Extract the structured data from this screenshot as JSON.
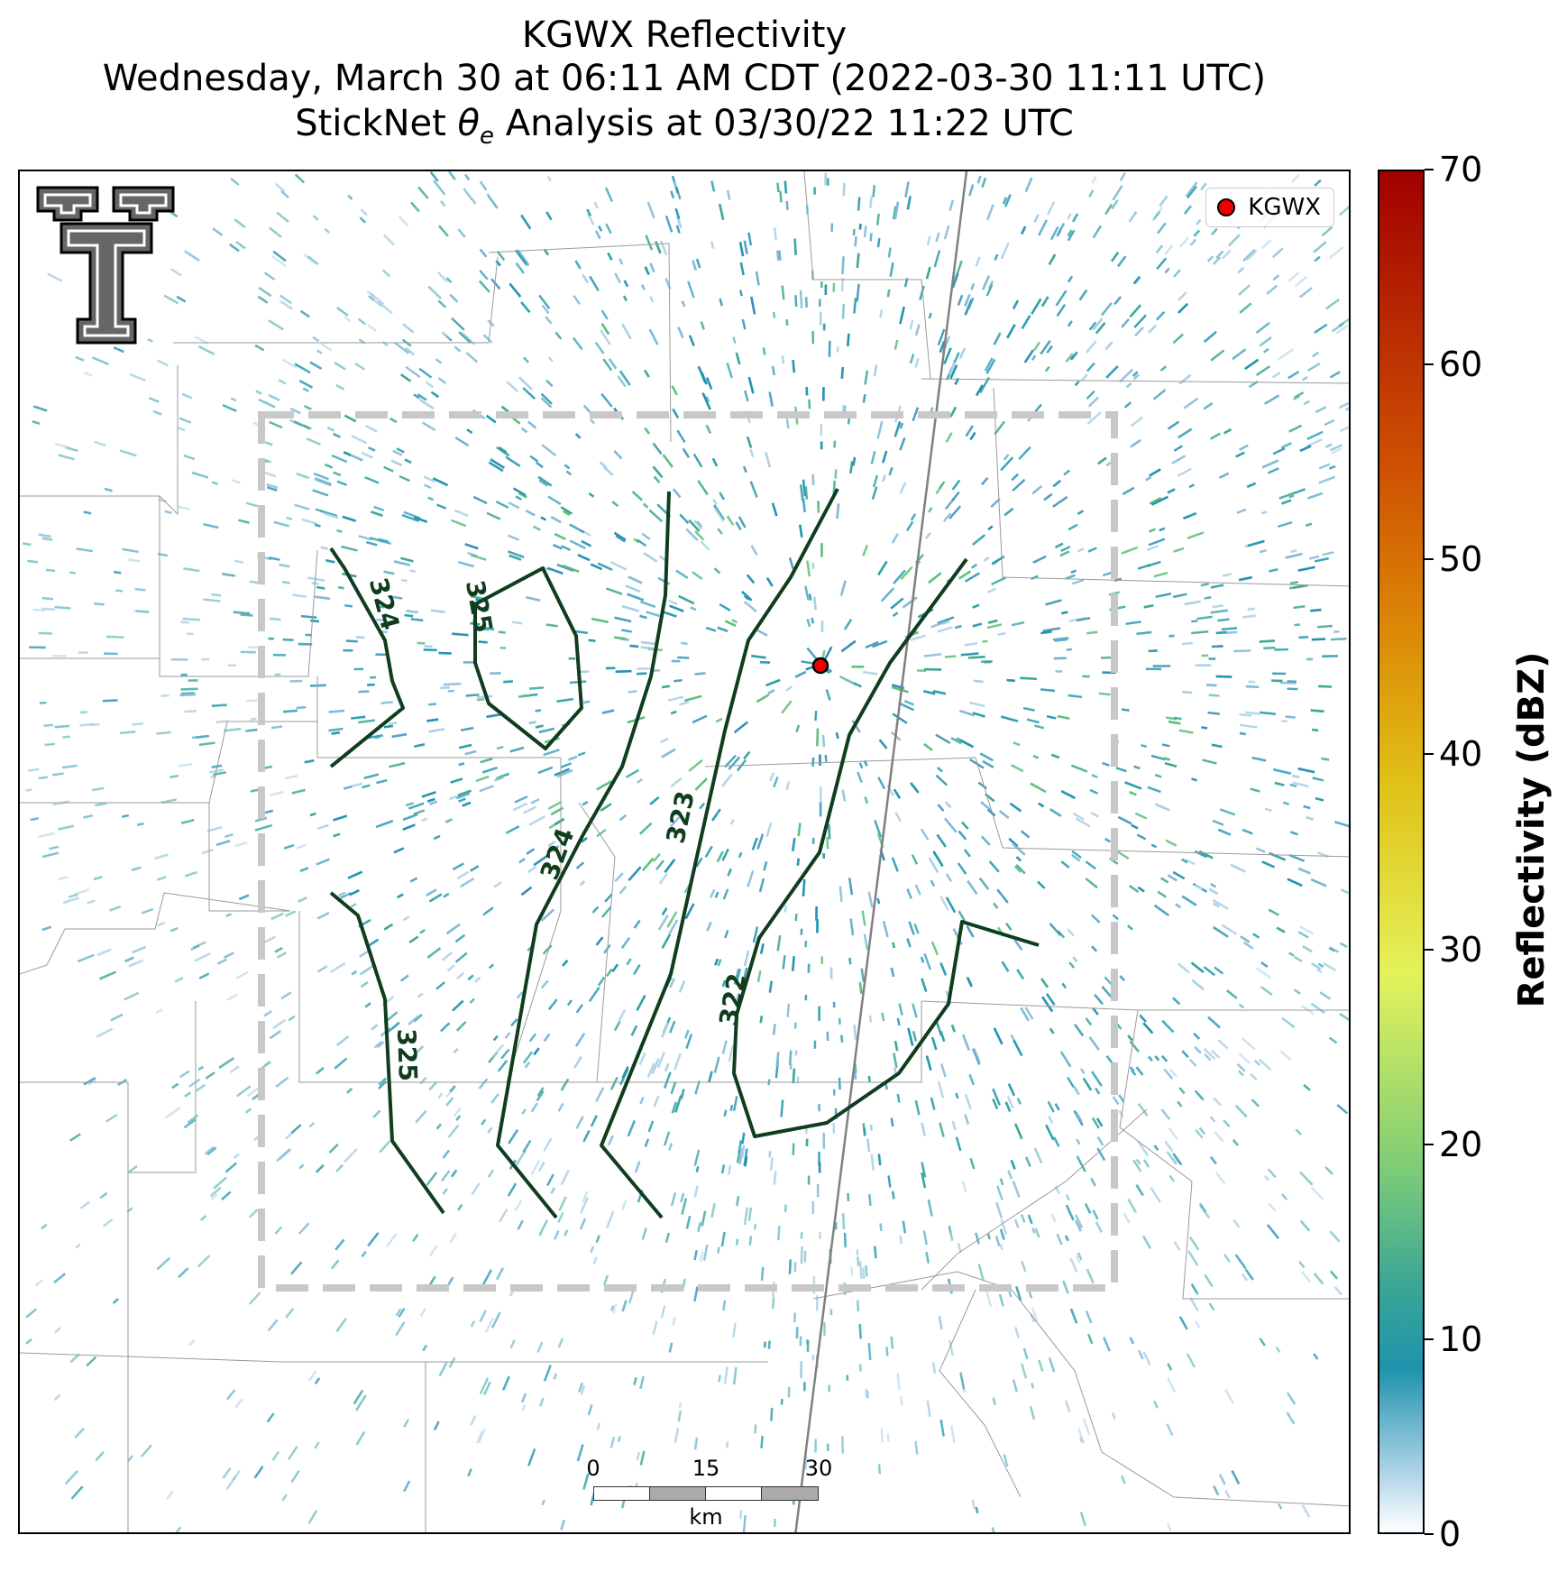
{
  "title": {
    "line1": "KGWX Reflectivity",
    "line2": "Wednesday, March 30 at 06:11 AM CDT (2022-03-30 11:11 UTC)",
    "line3_prefix": "StickNet ",
    "line3_symbol": "θ",
    "line3_subscript": "e",
    "line3_suffix": " Analysis at 03/30/22 11:22 UTC"
  },
  "legend": {
    "label": "KGWX",
    "marker_color": "#ee0000"
  },
  "scalebar": {
    "ticks": [
      "0",
      "15",
      "30"
    ],
    "unit": "km"
  },
  "colorbar": {
    "label": "Reflectivity (dBZ)",
    "ticks": [
      "0",
      "10",
      "20",
      "30",
      "40",
      "50",
      "60",
      "70"
    ],
    "min": 0,
    "max": 70
  },
  "contour_labels": [
    "324",
    "325",
    "324",
    "323",
    "322",
    "325"
  ],
  "colors": {
    "contour": "#0f3d1e",
    "analysis_box": "#c8c8c8",
    "highway": "#808080",
    "county_lines": "#9a9a9a"
  }
}
